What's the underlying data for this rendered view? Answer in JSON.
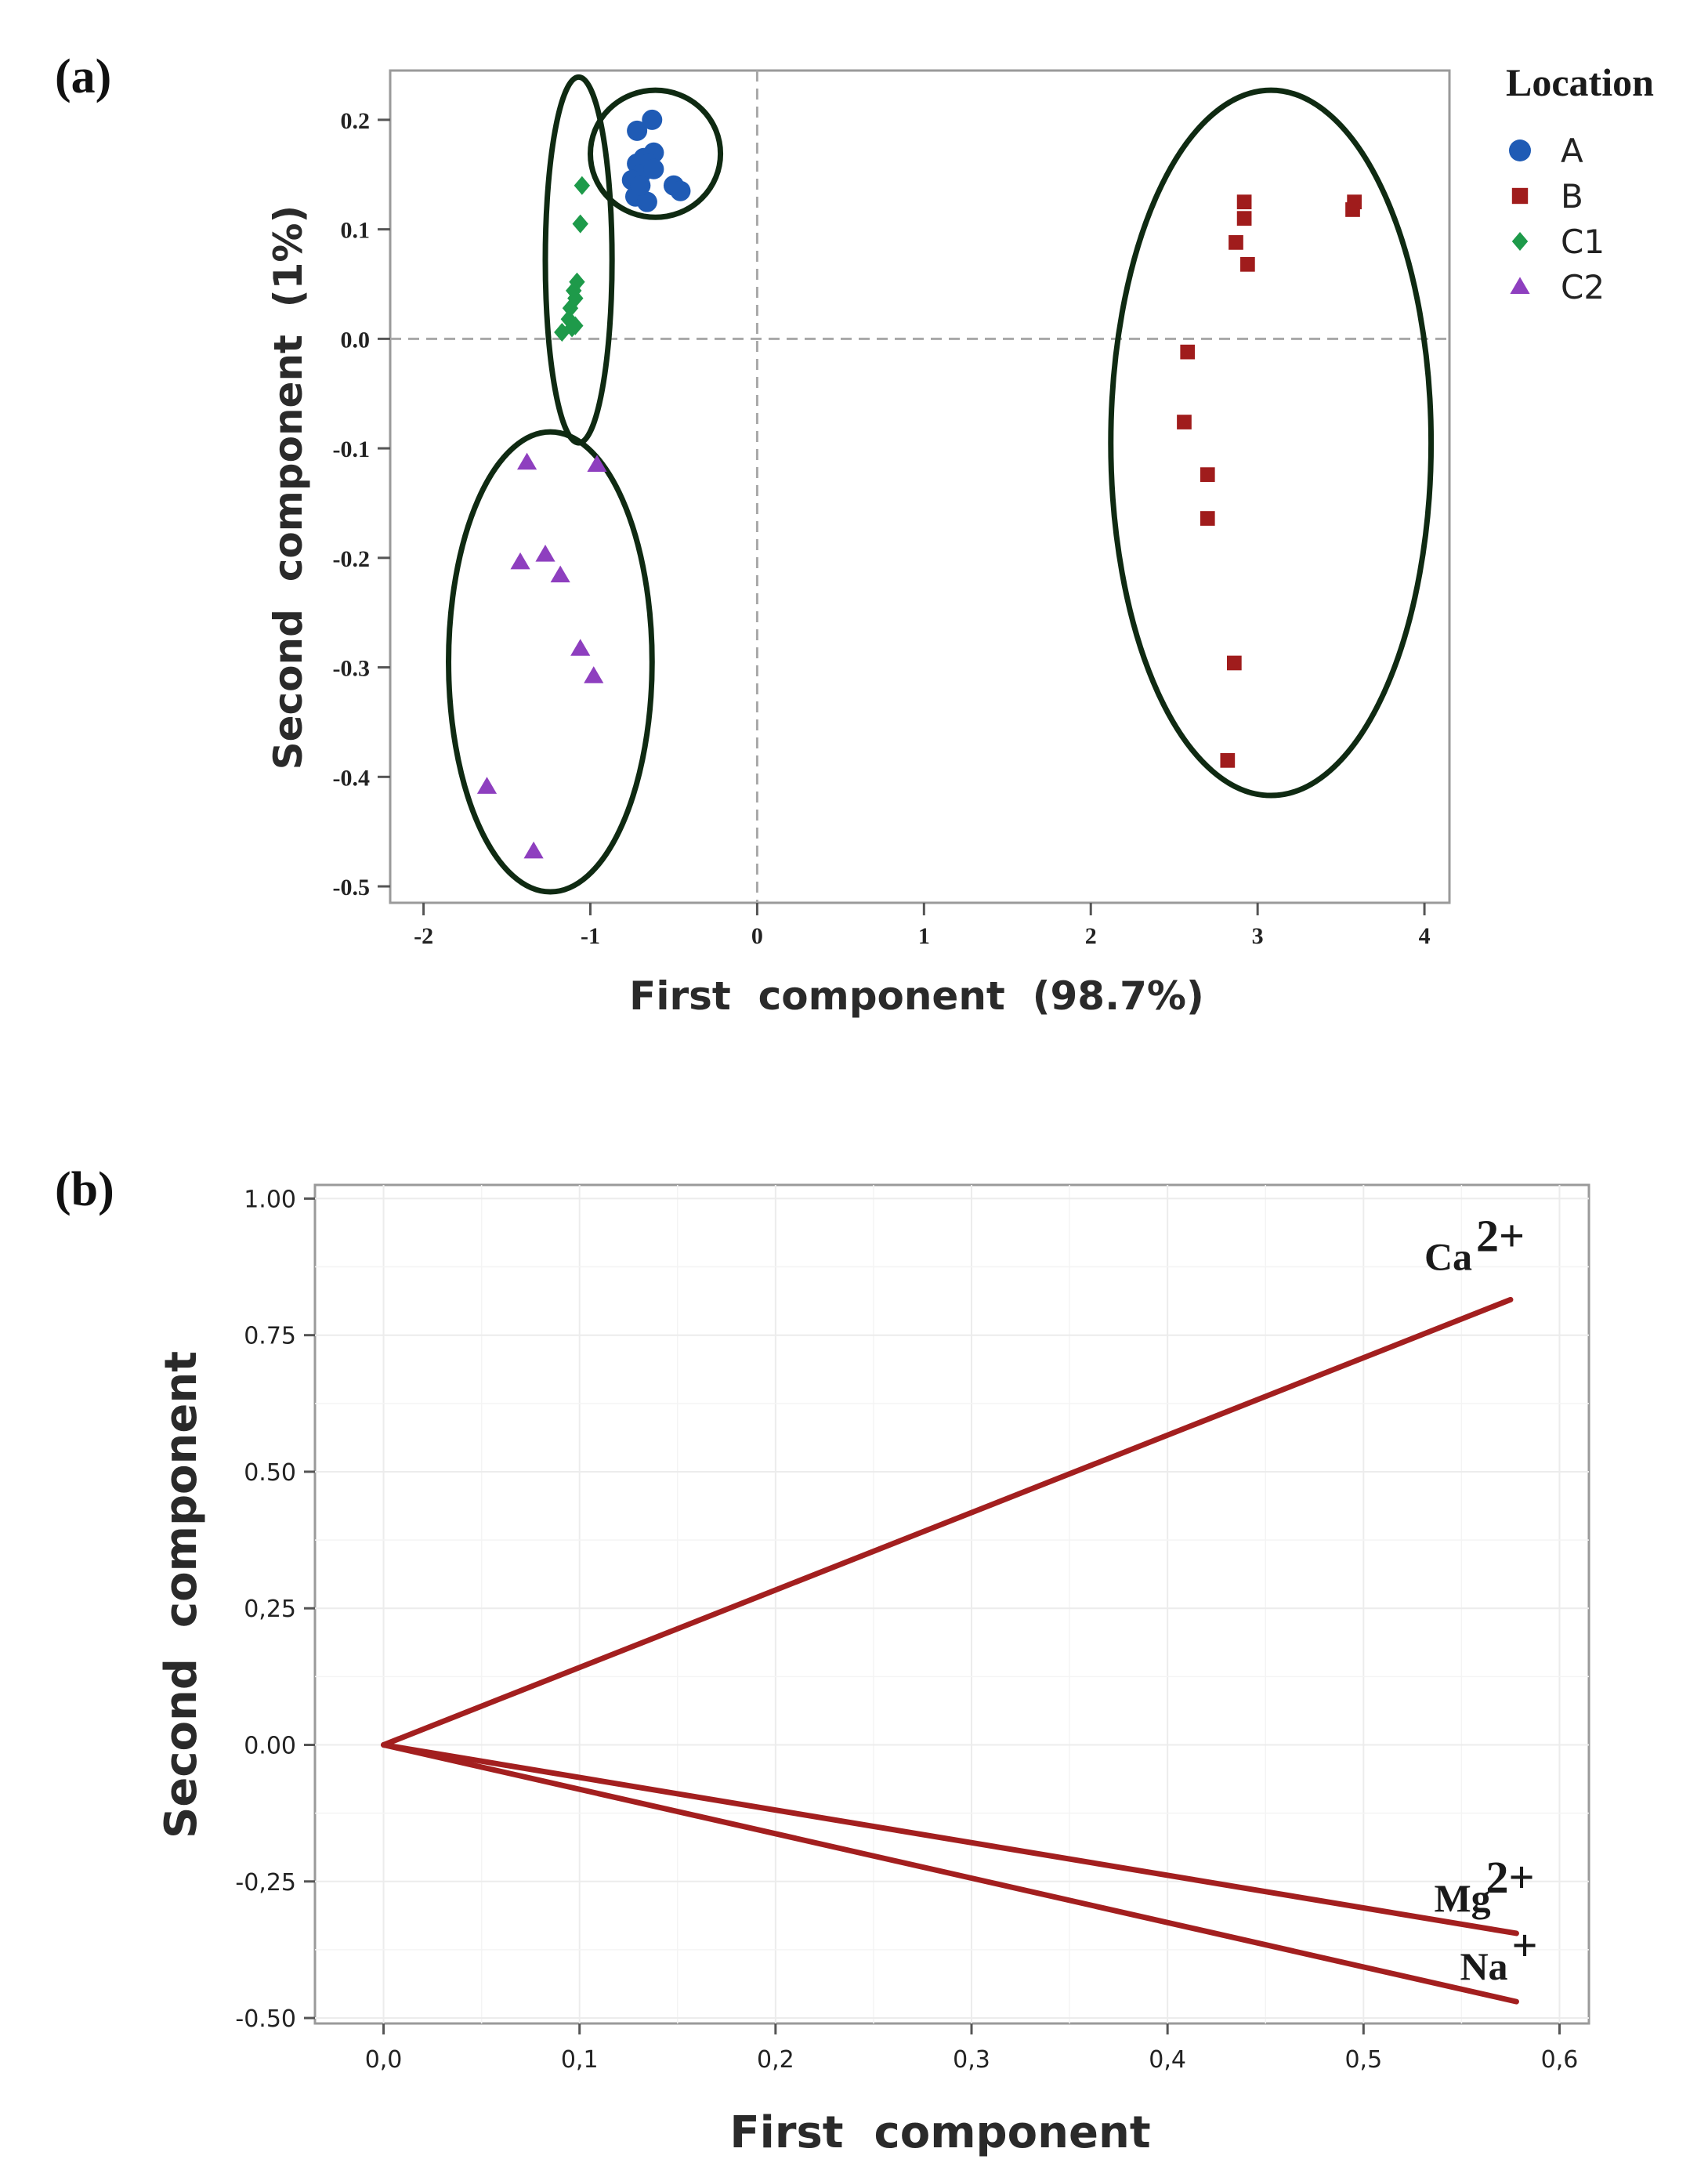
{
  "chart_data": [
    {
      "panel_label": "(a)",
      "type": "scatter",
      "xlabel": "First  component  (98.7%)",
      "ylabel": "Second  component  (1%)",
      "xlim": [
        -2.2,
        4.15
      ],
      "ylim": [
        -0.515,
        0.245
      ],
      "x_ticks": [
        -2,
        -1,
        0,
        1,
        2,
        3,
        4
      ],
      "x_tick_labels": [
        "-2",
        "-1",
        "0",
        "1",
        "2",
        "3",
        "4"
      ],
      "y_ticks": [
        0.2,
        0.1,
        0.0,
        -0.1,
        -0.2,
        -0.3,
        -0.4,
        -0.5
      ],
      "y_tick_labels": [
        "0.2",
        "0.1",
        "0.0",
        "-0.1",
        "-0.2",
        "-0.3",
        "-0.4",
        "-0.5"
      ],
      "reference_lines": {
        "x": 0,
        "y": 0,
        "style": "dashed"
      },
      "legend_title": "Location",
      "legend_position": "right",
      "series": [
        {
          "name": "A",
          "marker": "circle",
          "color": "#1f5bb5",
          "points": [
            [
              -0.72,
              0.19
            ],
            [
              -0.63,
              0.2
            ],
            [
              -0.68,
              0.165
            ],
            [
              -0.62,
              0.17
            ],
            [
              -0.72,
              0.16
            ],
            [
              -0.65,
              0.16
            ],
            [
              -0.7,
              0.15
            ],
            [
              -0.75,
              0.145
            ],
            [
              -0.62,
              0.155
            ],
            [
              -0.73,
              0.13
            ],
            [
              -0.66,
              0.125
            ],
            [
              -0.5,
              0.14
            ],
            [
              -0.46,
              0.135
            ],
            [
              -0.7,
              0.14
            ]
          ]
        },
        {
          "name": "B",
          "marker": "square",
          "color": "#a01c1c",
          "points": [
            [
              2.92,
              0.125
            ],
            [
              2.92,
              0.11
            ],
            [
              3.58,
              0.125
            ],
            [
              3.57,
              0.118
            ],
            [
              2.87,
              0.088
            ],
            [
              2.94,
              0.068
            ],
            [
              2.58,
              -0.012
            ],
            [
              2.56,
              -0.076
            ],
            [
              2.7,
              -0.124
            ],
            [
              2.7,
              -0.164
            ],
            [
              2.86,
              -0.296
            ],
            [
              2.82,
              -0.385
            ]
          ]
        },
        {
          "name": "C1",
          "marker": "diamond",
          "color": "#1e9a4a",
          "points": [
            [
              -1.05,
              0.14
            ],
            [
              -1.06,
              0.105
            ],
            [
              -1.08,
              0.052
            ],
            [
              -1.1,
              0.044
            ],
            [
              -1.09,
              0.037
            ],
            [
              -1.12,
              0.028
            ],
            [
              -1.13,
              0.018
            ],
            [
              -1.09,
              0.012
            ],
            [
              -1.17,
              0.006
            ],
            [
              -1.11,
              0.01
            ]
          ]
        },
        {
          "name": "C2",
          "marker": "triangle",
          "color": "#8e3fbf",
          "points": [
            [
              -1.38,
              -0.113
            ],
            [
              -0.96,
              -0.115
            ],
            [
              -1.27,
              -0.197
            ],
            [
              -1.42,
              -0.204
            ],
            [
              -1.18,
              -0.216
            ],
            [
              -1.06,
              -0.283
            ],
            [
              -0.98,
              -0.308
            ],
            [
              -1.62,
              -0.409
            ],
            [
              -1.34,
              -0.468
            ]
          ]
        }
      ],
      "ellipses": [
        {
          "group": "A",
          "cx": -0.61,
          "cy": 0.169,
          "rx": 0.39,
          "ry": 0.058
        },
        {
          "group": "C1",
          "cx": -1.07,
          "cy": 0.072,
          "rx": 0.2,
          "ry": 0.167
        },
        {
          "group": "C2",
          "cx": -1.24,
          "cy": -0.295,
          "rx": 0.61,
          "ry": 0.21
        },
        {
          "group": "B",
          "cx": 3.08,
          "cy": -0.095,
          "rx": 0.96,
          "ry": 0.322
        }
      ],
      "ellipse_color": "#0f2a12"
    },
    {
      "panel_label": "(b)",
      "type": "line",
      "xlabel": "First  component",
      "ylabel": "Second  component",
      "xlim": [
        -0.035,
        0.615
      ],
      "ylim": [
        -0.51,
        1.025
      ],
      "x_ticks": [
        0.0,
        0.1,
        0.2,
        0.3,
        0.4,
        0.5,
        0.6
      ],
      "x_tick_labels": [
        "0,0",
        "0,1",
        "0,2",
        "0,3",
        "0,4",
        "0,5",
        "0,6"
      ],
      "y_ticks": [
        1.0,
        0.75,
        0.5,
        0.25,
        0.0,
        -0.25,
        -0.5
      ],
      "y_tick_labels": [
        "1.00",
        "0.75",
        "0.50",
        "0,25",
        "0.00",
        "-0,25",
        "-0.50"
      ],
      "grid": true,
      "line_color": "#a31f1f",
      "vectors": [
        {
          "label": "Ca",
          "superscript": "2+",
          "x": [
            0,
            0.575
          ],
          "y": [
            0,
            0.815
          ]
        },
        {
          "label": "Mg",
          "superscript": "2+",
          "x": [
            0,
            0.578
          ],
          "y": [
            0,
            -0.345
          ]
        },
        {
          "label": "Na",
          "superscript": "+",
          "x": [
            0,
            0.578
          ],
          "y": [
            0,
            -0.47
          ]
        }
      ]
    }
  ]
}
